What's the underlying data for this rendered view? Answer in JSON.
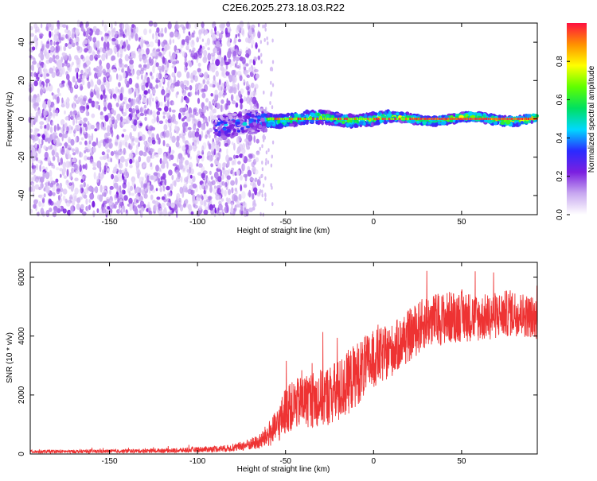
{
  "title": "C2E6.2025.273.18.03.R22",
  "chart_data": [
    {
      "type": "heatmap",
      "name": "spectrogram",
      "xlabel": "Height of straight line (km)",
      "ylabel": "Frequency (Hz)",
      "xlim": [
        -195,
        93
      ],
      "ylim": [
        -50,
        50
      ],
      "xticks": [
        -150,
        -100,
        -50,
        0,
        50
      ],
      "yticks": [
        -40,
        -20,
        0,
        20,
        40
      ],
      "description_of_signal": "noise scattered across frequencies for heights below about -65 km; a narrow band centred near 0 Hz from about -90 km to 93 km, strongest (normalized amplitude up to about 1) above -60 km",
      "noise_region_x": [
        -195,
        -65
      ],
      "signal_band_x": [
        -90,
        93
      ],
      "colorbar": {
        "label": "Normalized spectral amplitude",
        "range": [
          0,
          1
        ],
        "ticks": [
          0.0,
          0.2,
          0.4,
          0.6,
          0.8
        ],
        "colors": [
          "#ffffff",
          "#c8a8f0",
          "#7b1fe0",
          "#2a2aff",
          "#00d8ff",
          "#00e060",
          "#60ff00",
          "#ffff00",
          "#ff9000",
          "#ff1040"
        ]
      }
    },
    {
      "type": "line",
      "name": "snr",
      "xlabel": "Height of straight line (km)",
      "ylabel": "SNR (10 * v/v)",
      "xlim": [
        -195,
        93
      ],
      "ylim": [
        0,
        6500
      ],
      "xticks": [
        -150,
        -100,
        -50,
        0,
        50
      ],
      "yticks": [
        0,
        2000,
        4000,
        6000
      ],
      "color": "#ee3333",
      "envelope": {
        "x": [
          -195,
          -150,
          -110,
          -80,
          -65,
          -55,
          -50,
          -40,
          -30,
          -20,
          -10,
          0,
          10,
          20,
          30,
          40,
          50,
          60,
          70,
          80,
          93
        ],
        "mean": [
          80,
          90,
          120,
          200,
          400,
          900,
          1500,
          1800,
          1900,
          2100,
          2700,
          3200,
          3500,
          4000,
          4500,
          4600,
          4700,
          4600,
          4700,
          4800,
          4600
        ],
        "spread": [
          60,
          60,
          80,
          120,
          250,
          600,
          800,
          900,
          1000,
          1100,
          1100,
          1000,
          900,
          900,
          900,
          900,
          900,
          800,
          800,
          800,
          700
        ]
      }
    }
  ]
}
